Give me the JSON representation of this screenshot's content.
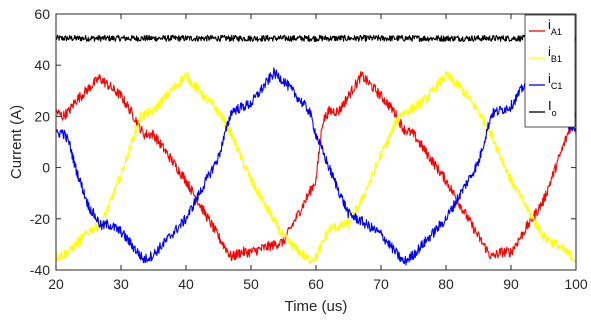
{
  "chart_data": {
    "type": "line",
    "xlabel": "Time (us)",
    "ylabel": "Current (A)",
    "xlim": [
      20,
      100
    ],
    "ylim": [
      -40,
      60
    ],
    "x_ticks": [
      20,
      30,
      40,
      50,
      60,
      70,
      80,
      90,
      100
    ],
    "y_ticks": [
      -40,
      -20,
      0,
      20,
      40,
      60
    ],
    "x_tick_labels": [
      "20",
      "30",
      "40",
      "50",
      "60",
      "70",
      "80",
      "90",
      "100"
    ],
    "y_tick_labels": [
      "-40",
      "-20",
      "0",
      "20",
      "40",
      "60"
    ],
    "grid": false,
    "legend_position": "top-right",
    "series": [
      {
        "name": "iA1",
        "label_main": "i",
        "label_sub": "A1",
        "color": "#ff0000",
        "noise": 2.0,
        "x": [
          20,
          21,
          22,
          23,
          26.7,
          30,
          32,
          33.5,
          35,
          40,
          45,
          47,
          48.5,
          50,
          55,
          60,
          61,
          62,
          63.5,
          67,
          70,
          72,
          73.5,
          75,
          80,
          85,
          87,
          88.5,
          90,
          95,
          100
        ],
        "y": [
          22,
          20,
          22,
          26,
          35,
          28,
          20,
          13,
          13,
          -5,
          -27,
          -35,
          -33,
          -33,
          -29,
          -5,
          18,
          22,
          22,
          36,
          28,
          22,
          15,
          13,
          -5,
          -27,
          -35,
          -33,
          -33,
          -13,
          22
        ]
      },
      {
        "name": "iB1",
        "label_main": "i",
        "label_sub": "B1",
        "color": "#ffff00",
        "noise": 2.0,
        "x": [
          20,
          22,
          25,
          27,
          30,
          33,
          35,
          37,
          40,
          42,
          45,
          47,
          50,
          55,
          57,
          59,
          60,
          62,
          65,
          67,
          70,
          73,
          75,
          77,
          80,
          82,
          85,
          87,
          90,
          95,
          97,
          100
        ],
        "y": [
          -35,
          -33,
          -25,
          -22,
          -3,
          20,
          22,
          28,
          36,
          30,
          22,
          13,
          -5,
          -27,
          -32,
          -36,
          -35,
          -24,
          -22,
          -13,
          5,
          21,
          23,
          27,
          36,
          32,
          22,
          13,
          -5,
          -27,
          -30,
          -36
        ],
        "z_note": ""
      },
      {
        "name": "iC1",
        "label_main": "i",
        "label_sub": "C1",
        "color": "#0000ff",
        "noise": 2.0,
        "x": [
          20,
          21,
          22,
          23,
          25,
          27,
          28,
          30,
          33.5,
          35,
          40,
          45,
          47,
          50,
          53.5,
          55,
          57,
          59,
          60,
          62,
          65,
          67,
          70,
          73.5,
          75,
          80,
          85,
          87,
          90,
          93,
          95,
          100
        ],
        "y": [
          13,
          14,
          10,
          0,
          -15,
          -23,
          -22,
          -25,
          -36,
          -34,
          -20,
          4,
          22,
          25,
          37,
          34,
          28,
          22,
          13,
          0,
          -18,
          -21,
          -26,
          -37,
          -34,
          -20,
          2,
          21,
          24,
          36,
          31,
          13
        ]
      },
      {
        "name": "Io",
        "label_main": "I",
        "label_sub": "o",
        "color": "#000000",
        "noise": 1.2,
        "x": [
          20,
          100
        ],
        "y": [
          50.5,
          50.5
        ]
      }
    ]
  }
}
